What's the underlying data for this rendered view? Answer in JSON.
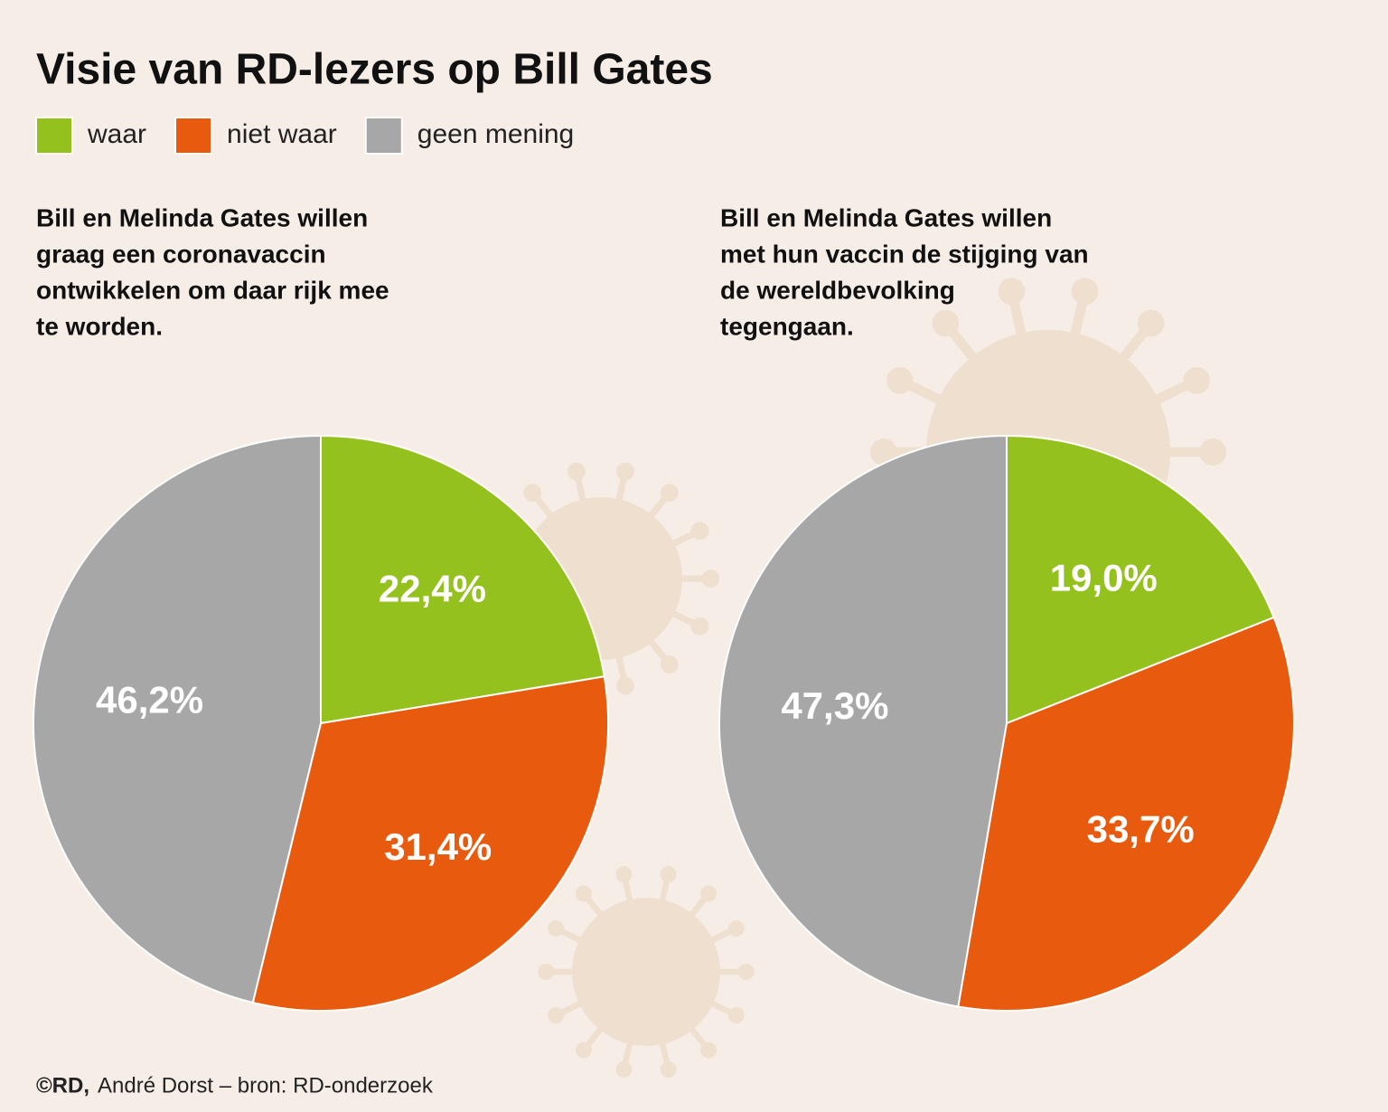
{
  "title": "Visie van RD-lezers op Bill Gates",
  "source": {
    "credit": "©RD,",
    "text": "André Dorst – bron: RD-onderzoek"
  },
  "chart_data": [
    {
      "type": "pie",
      "title": [
        "Bill en Melinda Gates willen",
        "graag een coronavaccin",
        "ontwikkelen om daar rijk mee",
        "te worden."
      ],
      "categories": [
        "waar",
        "niet waar",
        "geen mening"
      ],
      "values": [
        22.4,
        31.4,
        46.2
      ],
      "value_labels": [
        "22,4%",
        "31,4%",
        "46,2%"
      ],
      "colors": [
        "#95c11f",
        "#e85b0f",
        "#a8a7a7"
      ]
    },
    {
      "type": "pie",
      "title": [
        "Bill en Melinda Gates willen",
        "met hun vaccin de stijging van",
        "de wereldbevolking",
        "tegengaan."
      ],
      "categories": [
        "waar",
        "niet waar",
        "geen mening"
      ],
      "values": [
        19.0,
        33.7,
        47.3
      ],
      "value_labels": [
        "19,0%",
        "33,7%",
        "47,3%"
      ],
      "colors": [
        "#95c11f",
        "#e85b0f",
        "#a8a7a7"
      ]
    }
  ]
}
